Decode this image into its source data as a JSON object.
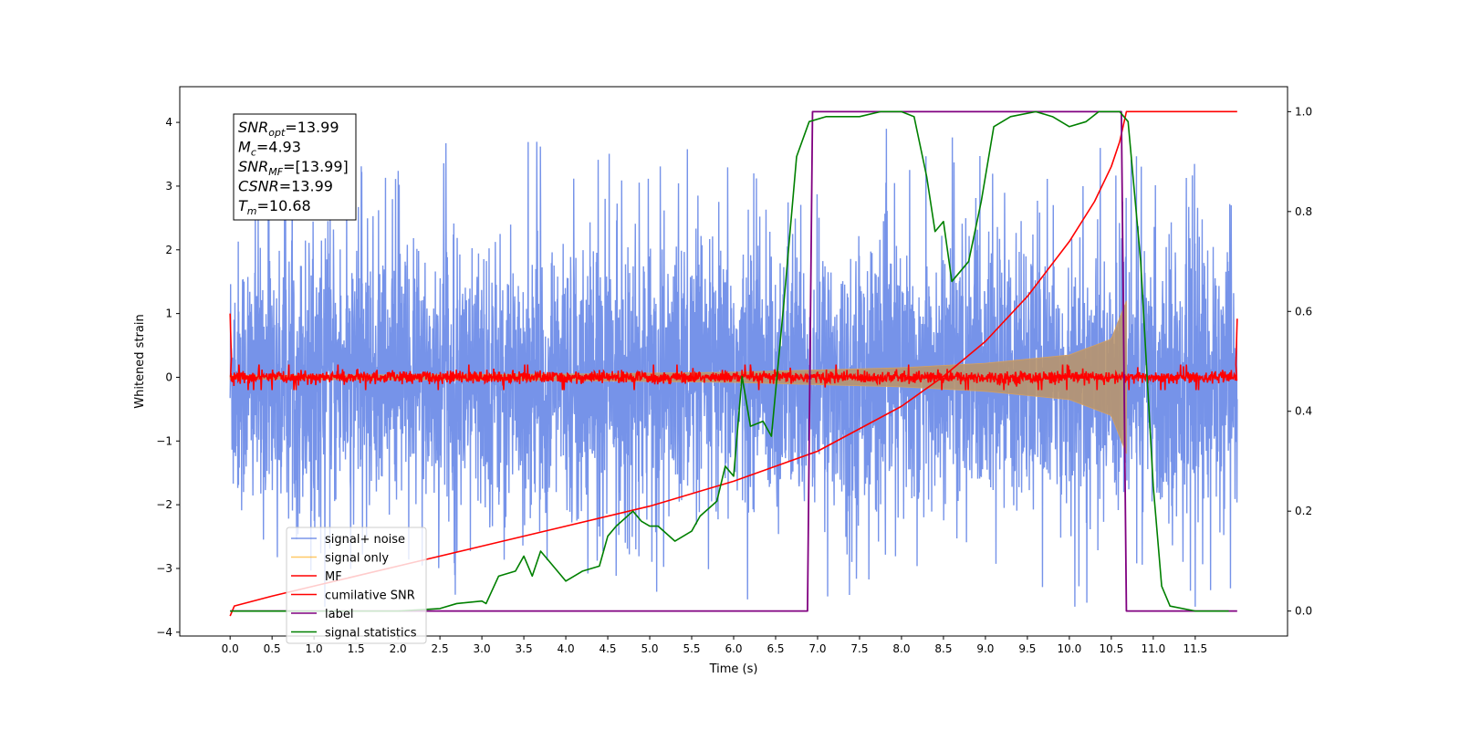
{
  "chart_data": {
    "type": "line",
    "xlabel": "Time (s)",
    "ylabel": "Whitened strain",
    "xlim": [
      -0.6,
      12.6
    ],
    "ylim": [
      -4.06,
      4.56
    ],
    "y2lim": [
      -0.05,
      1.05
    ],
    "x_ticks": [
      "0.0",
      "0.5",
      "1.0",
      "1.5",
      "2.0",
      "2.5",
      "3.0",
      "3.5",
      "4.0",
      "4.5",
      "5.0",
      "5.5",
      "6.0",
      "6.5",
      "7.0",
      "7.5",
      "8.0",
      "8.5",
      "9.0",
      "9.5",
      "10.0",
      "10.5",
      "11.0",
      "11.5"
    ],
    "y_ticks": [
      "4",
      "3",
      "2",
      "1",
      "0",
      "−1",
      "−2",
      "−3",
      "−4"
    ],
    "y2_ticks": [
      "1.0",
      "0.8",
      "0.6",
      "0.4",
      "0.2",
      "0.0"
    ],
    "annotation": [
      {
        "base": "SNR",
        "sub": "opt",
        "value": "=13.99"
      },
      {
        "base": "M",
        "sub": "c",
        "value": "=4.93"
      },
      {
        "base": "SNR",
        "sub": "MF",
        "value": "=[13.99]"
      },
      {
        "base": "CSNR",
        "sub": "",
        "value": "=13.99"
      },
      {
        "base": "T",
        "sub": "m",
        "value": "=10.68"
      }
    ],
    "legend": {
      "placement": "lower-left",
      "entries": [
        {
          "label": "signal+ noise",
          "color": "#4169e1"
        },
        {
          "label": "signal only",
          "color": "#ffa500"
        },
        {
          "label": "MF",
          "color": "#ff0000"
        },
        {
          "label": "cumilative SNR",
          "color": "#ff0000"
        },
        {
          "label": "label",
          "color": "#800080"
        },
        {
          "label": "signal statistics",
          "color": "#008000"
        }
      ]
    },
    "series": [
      {
        "name": "signal+ noise",
        "axis": "left",
        "x_range": [
          0.0,
          12.0
        ],
        "lower_envelope": -2.6,
        "upper_envelope": 2.6,
        "peaks": [
          3.9,
          -3.6
        ]
      },
      {
        "name": "signal only",
        "axis": "left",
        "x_range": [
          0.0,
          10.68
        ],
        "envelope": [
          [
            0.0,
            0.03
          ],
          [
            2.0,
            0.04
          ],
          [
            4.0,
            0.05
          ],
          [
            6.0,
            0.08
          ],
          [
            8.0,
            0.15
          ],
          [
            9.0,
            0.22
          ],
          [
            10.0,
            0.35
          ],
          [
            10.5,
            0.6
          ],
          [
            10.68,
            1.2
          ]
        ]
      },
      {
        "name": "MF",
        "axis": "left",
        "x_range": [
          0.0,
          12.0
        ],
        "amplitude": 0.08,
        "edges": [
          [
            0.0,
            1.0
          ],
          [
            12.0,
            0.92
          ]
        ]
      },
      {
        "name": "cumilative SNR",
        "axis": "right",
        "points": [
          [
            0.0,
            -0.01
          ],
          [
            0.05,
            0.01
          ],
          [
            0.5,
            0.03
          ],
          [
            1.0,
            0.05
          ],
          [
            2.0,
            0.09
          ],
          [
            3.0,
            0.13
          ],
          [
            4.0,
            0.17
          ],
          [
            5.0,
            0.21
          ],
          [
            6.0,
            0.26
          ],
          [
            7.0,
            0.32
          ],
          [
            8.0,
            0.41
          ],
          [
            8.5,
            0.47
          ],
          [
            9.0,
            0.54
          ],
          [
            9.5,
            0.63
          ],
          [
            10.0,
            0.74
          ],
          [
            10.3,
            0.82
          ],
          [
            10.5,
            0.89
          ],
          [
            10.6,
            0.94
          ],
          [
            10.68,
            1.0
          ],
          [
            12.0,
            1.0
          ]
        ]
      },
      {
        "name": "label",
        "axis": "right",
        "points": [
          [
            0.0,
            0.0
          ],
          [
            6.88,
            0.0
          ],
          [
            6.94,
            1.0
          ],
          [
            10.62,
            1.0
          ],
          [
            10.68,
            0.0
          ],
          [
            12.0,
            0.0
          ]
        ]
      },
      {
        "name": "signal statistics",
        "axis": "right",
        "points": [
          [
            0.0,
            0.0
          ],
          [
            1.0,
            0.0
          ],
          [
            2.0,
            0.0
          ],
          [
            2.5,
            0.005
          ],
          [
            2.7,
            0.015
          ],
          [
            3.0,
            0.02
          ],
          [
            3.05,
            0.015
          ],
          [
            3.2,
            0.07
          ],
          [
            3.4,
            0.08
          ],
          [
            3.5,
            0.11
          ],
          [
            3.6,
            0.07
          ],
          [
            3.7,
            0.12
          ],
          [
            3.8,
            0.1
          ],
          [
            4.0,
            0.06
          ],
          [
            4.2,
            0.08
          ],
          [
            4.4,
            0.09
          ],
          [
            4.5,
            0.15
          ],
          [
            4.6,
            0.17
          ],
          [
            4.8,
            0.2
          ],
          [
            4.9,
            0.18
          ],
          [
            5.0,
            0.17
          ],
          [
            5.1,
            0.17
          ],
          [
            5.3,
            0.14
          ],
          [
            5.5,
            0.16
          ],
          [
            5.6,
            0.19
          ],
          [
            5.8,
            0.22
          ],
          [
            5.9,
            0.29
          ],
          [
            6.0,
            0.27
          ],
          [
            6.1,
            0.47
          ],
          [
            6.2,
            0.37
          ],
          [
            6.35,
            0.38
          ],
          [
            6.45,
            0.35
          ],
          [
            6.6,
            0.62
          ],
          [
            6.75,
            0.91
          ],
          [
            6.9,
            0.98
          ],
          [
            7.1,
            0.99
          ],
          [
            7.5,
            0.99
          ],
          [
            7.75,
            1.0
          ],
          [
            8.0,
            1.0
          ],
          [
            8.15,
            0.99
          ],
          [
            8.3,
            0.87
          ],
          [
            8.4,
            0.76
          ],
          [
            8.5,
            0.78
          ],
          [
            8.6,
            0.66
          ],
          [
            8.8,
            0.7
          ],
          [
            8.95,
            0.82
          ],
          [
            9.1,
            0.97
          ],
          [
            9.3,
            0.99
          ],
          [
            9.6,
            1.0
          ],
          [
            9.8,
            0.99
          ],
          [
            10.0,
            0.97
          ],
          [
            10.2,
            0.98
          ],
          [
            10.35,
            1.0
          ],
          [
            10.6,
            1.0
          ],
          [
            10.7,
            0.98
          ],
          [
            10.85,
            0.7
          ],
          [
            11.0,
            0.25
          ],
          [
            11.1,
            0.05
          ],
          [
            11.2,
            0.01
          ],
          [
            11.5,
            0.0
          ],
          [
            11.9,
            0.0
          ]
        ]
      }
    ]
  }
}
